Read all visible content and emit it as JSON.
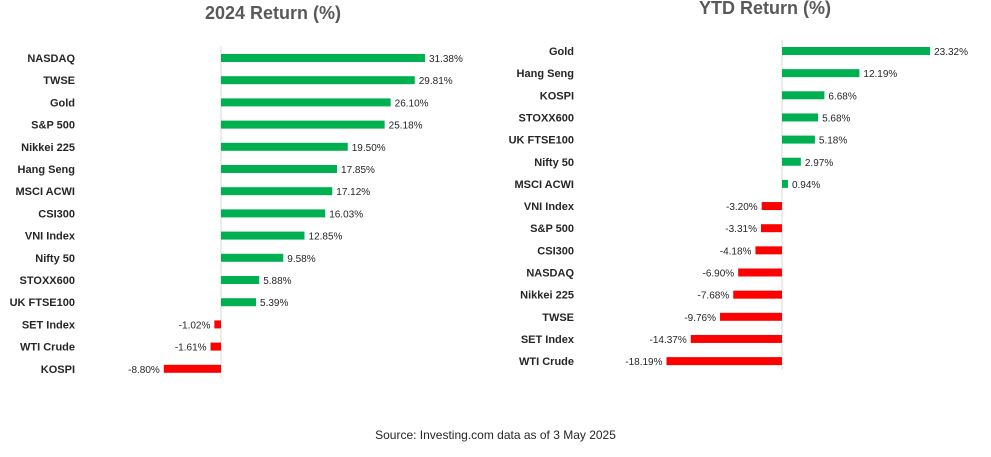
{
  "colors": {
    "positive": "#00b050",
    "negative": "#ff0000"
  },
  "chart_data": [
    {
      "type": "bar",
      "orientation": "horizontal",
      "title": "2024 Return (%)",
      "categories": [
        "NASDAQ",
        "TWSE",
        "Gold",
        "S&P 500",
        "Nikkei 225",
        "Hang Seng",
        "MSCI ACWI",
        "CSI300",
        "VNI Index",
        "Nifty 50",
        "STOXX600",
        "UK FTSE100",
        "SET Index",
        "WTI Crude",
        "KOSPI"
      ],
      "values": [
        31.38,
        29.81,
        26.1,
        25.18,
        19.5,
        17.85,
        17.12,
        16.03,
        12.85,
        9.58,
        5.88,
        5.39,
        -1.02,
        -1.61,
        -8.8
      ],
      "labels": [
        "31.38%",
        "29.81%",
        "26.10%",
        "25.18%",
        "19.50%",
        "17.85%",
        "17.12%",
        "16.03%",
        "12.85%",
        "9.58%",
        "5.88%",
        "5.39%",
        "-1.02%",
        "-1.61%",
        "-8.80%"
      ],
      "xlim": [
        -8.8,
        31.38
      ],
      "grid": false
    },
    {
      "type": "bar",
      "orientation": "horizontal",
      "title": "YTD Return (%)",
      "categories": [
        "Gold",
        "Hang Seng",
        "KOSPI",
        "STOXX600",
        "UK FTSE100",
        "Nifty 50",
        "MSCI ACWI",
        "VNI Index",
        "S&P 500",
        "CSI300",
        "NASDAQ",
        "Nikkei 225",
        "TWSE",
        "SET Index",
        "WTI Crude"
      ],
      "values": [
        23.32,
        12.19,
        6.68,
        5.68,
        5.18,
        2.97,
        0.94,
        -3.2,
        -3.31,
        -4.18,
        -6.9,
        -7.68,
        -9.76,
        -14.37,
        -18.19
      ],
      "labels": [
        "23.32%",
        "12.19%",
        "6.68%",
        "5.68%",
        "5.18%",
        "2.97%",
        "0.94%",
        "-3.20%",
        "-3.31%",
        "-4.18%",
        "-6.90%",
        "-7.68%",
        "-9.76%",
        "-14.37%",
        "-18.19%"
      ],
      "xlim": [
        -18.19,
        23.32
      ],
      "grid": false
    }
  ],
  "source": "Source: Investing.com data as of  3 May 2025"
}
